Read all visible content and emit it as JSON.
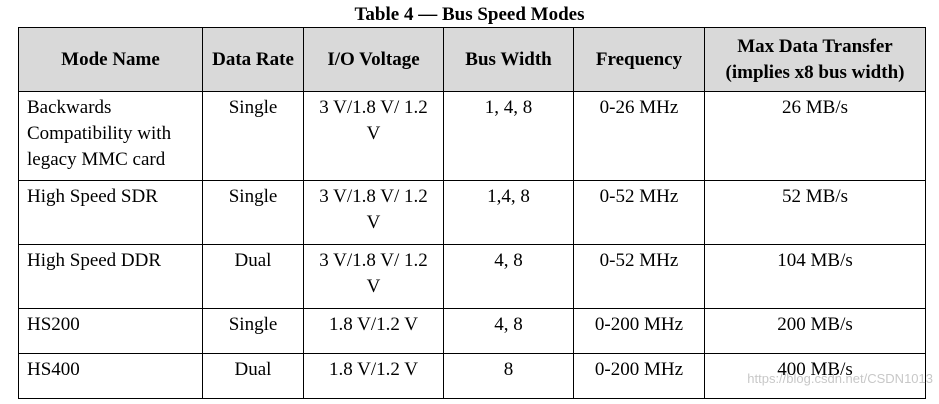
{
  "header": {
    "title": "Table 4 — Bus Speed Modes"
  },
  "table": {
    "columns": [
      "Mode Name",
      "Data Rate",
      "I/O Voltage",
      "Bus Width",
      "Frequency",
      "Max Data Transfer (implies x8 bus width)"
    ],
    "rows": [
      [
        "Backwards Compatibility with legacy MMC card",
        "Single",
        "3 V/1.8 V/ 1.2 V",
        "1, 4, 8",
        "0-26 MHz",
        "26 MB/s"
      ],
      [
        "High Speed SDR",
        "Single",
        "3 V/1.8 V/ 1.2 V",
        "1,4, 8",
        "0-52 MHz",
        "52 MB/s"
      ],
      [
        "High Speed DDR",
        "Dual",
        "3 V/1.8 V/ 1.2 V",
        "4, 8",
        "0-52 MHz",
        "104 MB/s"
      ],
      [
        "HS200",
        "Single",
        "1.8 V/1.2 V",
        "4, 8",
        "0-200 MHz",
        "200 MB/s"
      ],
      [
        "HS400",
        "Dual",
        "1.8 V/1.2 V",
        "8",
        "0-200 MHz",
        "400 MB/s"
      ]
    ]
  },
  "watermark": "https://blog.csdn.net/CSDN1013"
}
